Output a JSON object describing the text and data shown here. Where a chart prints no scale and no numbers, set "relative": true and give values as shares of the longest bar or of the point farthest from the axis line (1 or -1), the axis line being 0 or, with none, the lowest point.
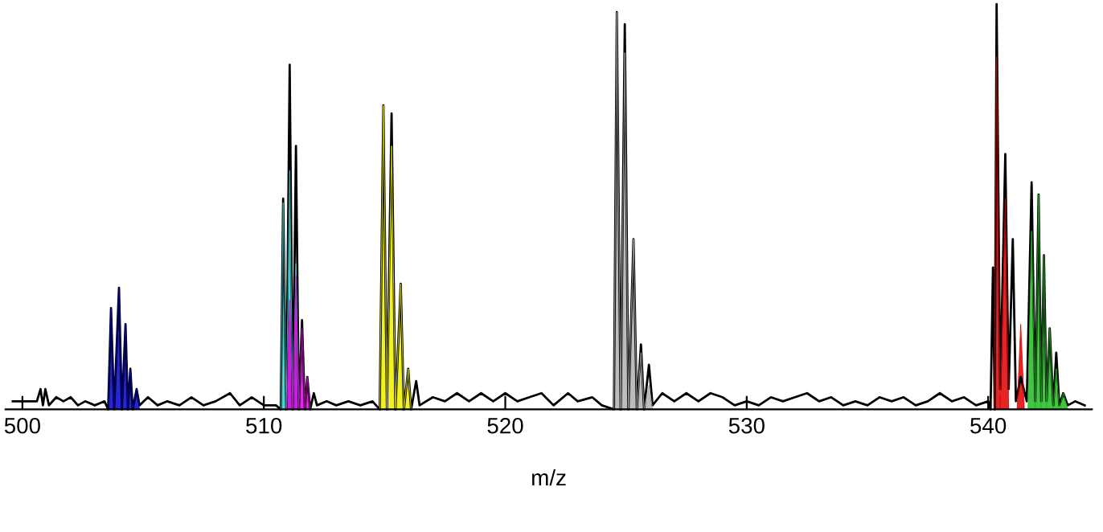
{
  "chart_data": {
    "type": "line",
    "relative": true,
    "xlabel": "m/z",
    "xlim": [
      499.3,
      544.3
    ],
    "xticks": [
      500,
      510,
      520,
      530,
      540
    ],
    "tick_labels": "x",
    "grid": false,
    "series": [
      {
        "type": "line",
        "color": "#000000",
        "x": [
          499.6,
          499.9,
          500.6,
          500.75,
          500.85,
          500.95,
          501.1,
          501.4,
          501.7,
          502.0,
          502.3,
          502.6,
          503.0,
          503.4,
          503.55,
          503.67,
          503.8,
          504.0,
          504.12,
          504.27,
          504.37,
          504.47,
          504.57,
          504.73,
          504.85,
          505.2,
          505.6,
          506.0,
          506.5,
          507.0,
          507.5,
          508.0,
          508.6,
          509.0,
          509.5,
          510.0,
          510.5,
          510.7,
          510.8,
          510.93,
          511.07,
          511.2,
          511.33,
          511.45,
          511.58,
          511.7,
          511.8,
          511.92,
          512.07,
          512.2,
          512.6,
          513.0,
          513.5,
          514.0,
          514.5,
          514.8,
          514.95,
          515.1,
          515.29,
          515.45,
          515.67,
          515.8,
          515.98,
          516.1,
          516.31,
          516.45,
          517.0,
          517.5,
          518.0,
          518.5,
          519.0,
          519.5,
          520.0,
          520.5,
          521.0,
          521.5,
          522.0,
          522.6,
          523.0,
          523.6,
          524.0,
          524.5,
          524.62,
          524.78,
          524.95,
          525.1,
          525.31,
          525.45,
          525.62,
          525.75,
          525.95,
          526.1,
          526.5,
          527.0,
          527.5,
          528.0,
          528.5,
          529.0,
          529.5,
          530.0,
          530.5,
          531.0,
          531.5,
          532.0,
          532.5,
          533.0,
          533.5,
          534.0,
          534.5,
          535.0,
          535.5,
          536.0,
          536.5,
          537.0,
          537.5,
          538.0,
          538.5,
          539.0,
          539.5,
          540.0,
          540.1,
          540.2,
          540.27,
          540.35,
          540.5,
          540.71,
          540.85,
          541.02,
          541.15,
          541.35,
          541.6,
          541.8,
          541.95,
          542.09,
          542.2,
          542.31,
          542.42,
          542.55,
          542.7,
          542.82,
          542.95,
          543.11,
          543.3,
          543.6,
          544.0
        ],
        "values": [
          0.02,
          0.02,
          0.02,
          0.05,
          0.01,
          0.05,
          0.01,
          0.03,
          0.02,
          0.03,
          0.01,
          0.02,
          0.01,
          0.02,
          0,
          0.25,
          0,
          0.3,
          0,
          0.21,
          0,
          0.1,
          0,
          0.05,
          0.01,
          0.03,
          0.01,
          0.02,
          0.01,
          0.03,
          0.01,
          0.02,
          0.04,
          0.01,
          0.03,
          0.01,
          0.01,
          0,
          0.52,
          0,
          0.85,
          0,
          0.65,
          0,
          0.22,
          0,
          0.08,
          0,
          0.04,
          0.01,
          0.02,
          0.01,
          0.02,
          0.01,
          0.02,
          0,
          0.75,
          0,
          0.73,
          0,
          0.31,
          0,
          0.1,
          0,
          0.07,
          0.01,
          0.03,
          0.02,
          0.04,
          0.02,
          0.04,
          0.02,
          0.04,
          0.02,
          0.03,
          0.04,
          0.01,
          0.04,
          0.02,
          0.03,
          0.01,
          0,
          0.98,
          0,
          0.95,
          0,
          0.42,
          0,
          0.16,
          0,
          0.11,
          0.01,
          0.04,
          0.02,
          0.04,
          0.02,
          0.04,
          0.03,
          0.01,
          0.02,
          0.01,
          0.03,
          0.02,
          0.03,
          0.04,
          0.02,
          0.03,
          0.01,
          0.02,
          0.01,
          0.03,
          0.02,
          0.03,
          0.01,
          0.02,
          0.04,
          0.02,
          0.03,
          0.01,
          0.02,
          0,
          0.35,
          0,
          1,
          0.05,
          0.63,
          0.05,
          0.42,
          0.02,
          0.08,
          0.02,
          0.56,
          0.02,
          0.53,
          0.02,
          0.38,
          0.02,
          0.2,
          0.01,
          0.14,
          0.01,
          0.04,
          0.01,
          0.02,
          0.01
        ]
      },
      {
        "type": "area",
        "color": "#0000cc",
        "x": [
          503.55,
          503.67,
          503.8,
          504.0,
          504.12,
          504.27,
          504.37,
          504.47,
          504.57,
          504.73,
          504.85
        ],
        "values": [
          0,
          0.25,
          0,
          0.3,
          0,
          0.21,
          0,
          0.1,
          0,
          0.05,
          0
        ]
      },
      {
        "type": "area",
        "color": "#33cccc",
        "x": [
          510.7,
          510.8,
          510.93,
          511.07,
          511.2,
          511.33,
          511.45
        ],
        "values": [
          0,
          0.51,
          0,
          0.59,
          0,
          0.36,
          0
        ]
      },
      {
        "type": "area",
        "color": "#dd00dd",
        "x": [
          510.95,
          511.07,
          511.2,
          511.33,
          511.45,
          511.58,
          511.7,
          511.8,
          511.92
        ],
        "values": [
          0,
          0.27,
          0,
          0.33,
          0,
          0.2,
          0,
          0.08,
          0
        ]
      },
      {
        "type": "area",
        "color": "#eeee00",
        "x": [
          514.8,
          514.95,
          515.1,
          515.29,
          515.45,
          515.67,
          515.8,
          515.98,
          516.1
        ],
        "values": [
          0,
          0.75,
          0,
          0.65,
          0,
          0.31,
          0,
          0.1,
          0
        ]
      },
      {
        "type": "area",
        "color": "#b0b0b0",
        "x": [
          524.5,
          524.62,
          524.78,
          524.95,
          525.1,
          525.31,
          525.45,
          525.62,
          525.75,
          525.95,
          526.1
        ],
        "values": [
          0,
          0.98,
          0,
          0.88,
          0,
          0.42,
          0,
          0.14,
          0,
          0.06,
          0
        ]
      },
      {
        "type": "area",
        "color": "#dd0000",
        "x": [
          540.25,
          540.35,
          540.5,
          540.71,
          540.85,
          541.2,
          541.35,
          541.5
        ],
        "values": [
          0,
          0.87,
          0,
          0.52,
          0,
          0,
          0.21,
          0
        ]
      },
      {
        "type": "area",
        "color": "#22bb22",
        "x": [
          541.65,
          541.8,
          541.95,
          542.09,
          542.2,
          542.31,
          542.42,
          542.55,
          542.7,
          542.82,
          542.95,
          543.11,
          543.3
        ],
        "values": [
          0,
          0.44,
          0,
          0.53,
          0,
          0.38,
          0,
          0.2,
          0,
          0.1,
          0,
          0.04,
          0
        ]
      }
    ]
  }
}
